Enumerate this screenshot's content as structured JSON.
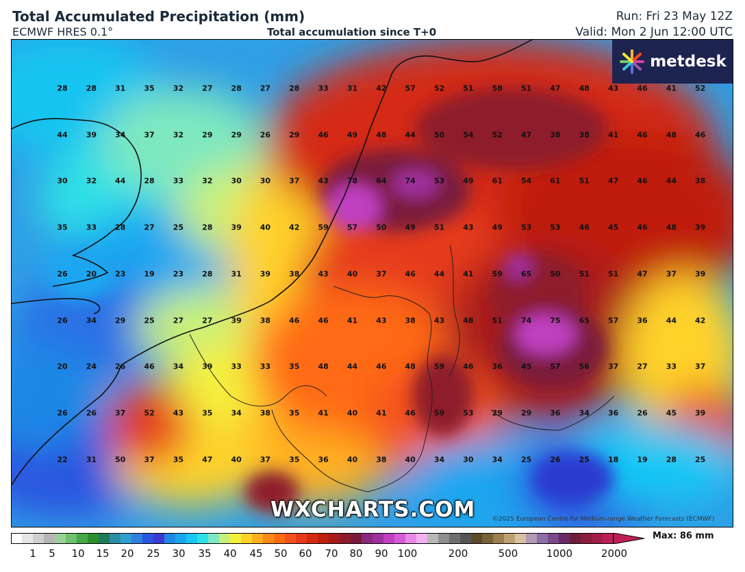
{
  "header": {
    "title": "Total Accumulated Precipitation (mm)",
    "model": "ECMWF HRES 0.1°",
    "subtitle": "Total accumulation since T+0",
    "run": "Run: Fri 23 May 12Z",
    "valid": "Valid: Mon 2 Jun 12:00 UTC"
  },
  "brand": {
    "name": "metdesk"
  },
  "watermark": "WXCHARTS.COM",
  "copyright": "©2025 European Centre for Medium-range Weather Forecasts (ECMWF)",
  "grid_values": [
    [
      28,
      28,
      31,
      35,
      32,
      27,
      28,
      27,
      28,
      33,
      31,
      42,
      57,
      52,
      51,
      58,
      51,
      47,
      48,
      43,
      46,
      41,
      52
    ],
    [
      44,
      39,
      34,
      37,
      32,
      29,
      29,
      26,
      29,
      46,
      49,
      48,
      44,
      50,
      54,
      52,
      47,
      38,
      38,
      41,
      46,
      48,
      46
    ],
    [
      30,
      32,
      44,
      28,
      33,
      32,
      30,
      30,
      37,
      43,
      78,
      64,
      74,
      53,
      49,
      61,
      54,
      61,
      51,
      47,
      46,
      44,
      38
    ],
    [
      35,
      33,
      28,
      27,
      25,
      28,
      39,
      40,
      42,
      59,
      57,
      50,
      49,
      51,
      43,
      49,
      53,
      53,
      46,
      45,
      46,
      48,
      39
    ],
    [
      26,
      20,
      23,
      19,
      23,
      28,
      31,
      39,
      38,
      43,
      40,
      37,
      46,
      44,
      41,
      59,
      65,
      50,
      51,
      51,
      47,
      37,
      39
    ],
    [
      26,
      34,
      29,
      25,
      27,
      27,
      39,
      38,
      46,
      46,
      41,
      43,
      38,
      43,
      48,
      51,
      74,
      75,
      65,
      57,
      36,
      44,
      42
    ],
    [
      20,
      24,
      26,
      46,
      34,
      39,
      33,
      33,
      35,
      48,
      44,
      46,
      48,
      59,
      46,
      36,
      45,
      57,
      56,
      37,
      27,
      33,
      37
    ],
    [
      26,
      26,
      37,
      52,
      43,
      35,
      34,
      38,
      35,
      41,
      40,
      41,
      46,
      59,
      53,
      29,
      29,
      36,
      34,
      36,
      26,
      45,
      39
    ],
    [
      22,
      31,
      50,
      37,
      35,
      47,
      40,
      37,
      35,
      36,
      40,
      38,
      40,
      34,
      30,
      34,
      25,
      26,
      25,
      18,
      19,
      28,
      25
    ]
  ],
  "colorbar": {
    "labels": [
      "1",
      "5",
      "10",
      "15",
      "20",
      "25",
      "30",
      "35",
      "40",
      "45",
      "50",
      "60",
      "70",
      "80",
      "90",
      "100",
      "200",
      "500",
      "1000",
      "2000"
    ],
    "max_label": "Max: 86 mm",
    "colors": [
      "#ffffff",
      "#e6e6e6",
      "#cfcfcf",
      "#b5b5b5",
      "#9ad29a",
      "#6fc06f",
      "#46a846",
      "#2b8f2b",
      "#1f7a5a",
      "#2a8fa0",
      "#2e9fd0",
      "#2f7fe0",
      "#2a55e0",
      "#3a3ad0",
      "#1e88e5",
      "#1ca6f0",
      "#18c7f5",
      "#2ee0e6",
      "#7ee8c0",
      "#c6f07a",
      "#f5f03c",
      "#ffd22a",
      "#ffb020",
      "#ff8a1a",
      "#ff6a14",
      "#f4511e",
      "#e53a1a",
      "#d42a14",
      "#bf1e10",
      "#a81a1a",
      "#8e1a2a",
      "#7a1a3a",
      "#8a2a7a",
      "#a030a0",
      "#c040c0",
      "#d65cd6",
      "#e888e8",
      "#f2b2f2",
      "#b8b8b8",
      "#8f8f8f",
      "#6e6e6e",
      "#555555",
      "#5a4a2a",
      "#7a6238",
      "#9c8050",
      "#c0a070",
      "#d8c0a0",
      "#b09ab8",
      "#8f6fa8",
      "#7a4a8a",
      "#6a2a6a",
      "#6e1e3a",
      "#8a1e3a",
      "#a01e48",
      "#c01e58"
    ]
  },
  "colors": {
    "header_text": "#1a2a3a",
    "brand_bg": "#1e2450",
    "coast": "#111111"
  }
}
